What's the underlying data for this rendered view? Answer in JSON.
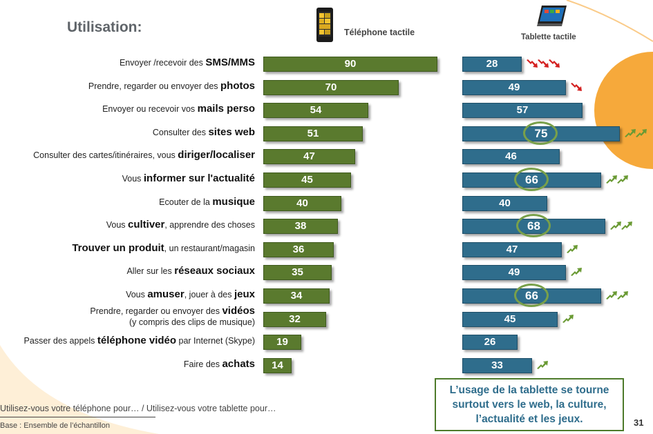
{
  "title": "Utilisation:",
  "devices": {
    "phone": "Téléphone tactile",
    "tablet": "Tablette tactile"
  },
  "colors": {
    "phone_bar": "#5a7a2e",
    "tablet_bar": "#2f6d8c",
    "highlight_circle": "#79a04a",
    "up_arrow": "#6a9a34",
    "down_arrow": "#d42020",
    "decor": "#f6a93b"
  },
  "chart_data": {
    "type": "bar",
    "orientation": "horizontal",
    "title": "Utilisation:",
    "categories": [
      "Envoyer /recevoir des SMS/MMS",
      "Prendre, regarder ou envoyer des photos",
      "Envoyer ou recevoir vos mails perso",
      "Consulter des sites web",
      "Consulter des cartes/itinéraires, vous diriger/localiser",
      "Vous informer sur l'actualité",
      "Ecouter de la musique",
      "Vous cultiver, apprendre des choses",
      "Trouver un produit, un restaurant/magasin",
      "Aller sur les réseaux sociaux",
      "Vous amuser, jouer à des jeux",
      "Prendre, regarder ou envoyer des vidéos (y compris des clips de musique)",
      "Passer des appels téléphone vidéo par Internet (Skype)",
      "Faire des achats"
    ],
    "series": [
      {
        "name": "Téléphone tactile",
        "values": [
          90,
          70,
          54,
          51,
          47,
          45,
          40,
          38,
          36,
          35,
          34,
          32,
          19,
          14
        ]
      },
      {
        "name": "Tablette tactile",
        "values": [
          28,
          49,
          57,
          75,
          46,
          66,
          40,
          68,
          47,
          49,
          66,
          45,
          26,
          33
        ]
      }
    ],
    "tablet_highlighted": [
      false,
      false,
      false,
      true,
      false,
      true,
      false,
      true,
      false,
      false,
      true,
      false,
      false,
      false
    ],
    "tablet_trend": [
      "down2",
      "down1",
      "",
      "up2",
      "",
      "up2",
      "",
      "up2",
      "up1",
      "up1",
      "up2",
      "up1",
      "",
      "up1"
    ],
    "xlim": [
      0,
      100
    ]
  },
  "rows": [
    {
      "pre": "Envoyer /recevoir des ",
      "bold": "SMS/MMS",
      "post": ""
    },
    {
      "pre": "Prendre, regarder ou envoyer des ",
      "bold": "photos",
      "post": ""
    },
    {
      "pre": "Envoyer ou recevoir vos ",
      "bold": "mails perso",
      "post": ""
    },
    {
      "pre": "Consulter des ",
      "bold": "sites web",
      "post": ""
    },
    {
      "pre": "Consulter des cartes/itinéraires, vous ",
      "bold": "diriger/localiser",
      "post": ""
    },
    {
      "pre": "Vous ",
      "bold": "informer sur l'actualité",
      "post": ""
    },
    {
      "pre": "Ecouter de la ",
      "bold": "musique",
      "post": ""
    },
    {
      "pre": "Vous ",
      "bold": "cultiver",
      "post": ", apprendre des choses"
    },
    {
      "pre": "",
      "bold": "Trouver un produit",
      "post": ", un restaurant/magasin"
    },
    {
      "pre": "Aller sur les ",
      "bold": "réseaux sociaux",
      "post": ""
    },
    {
      "pre": "Vous ",
      "bold": "amuser",
      "post": ", jouer à des ",
      "bold2": "jeux"
    },
    {
      "pre": "Prendre, regarder ou envoyer des ",
      "bold": "vidéos",
      "post": "",
      "line2": "(y compris des clips de musique)"
    },
    {
      "pre": "Passer des appels ",
      "bold": "téléphone vidéo",
      "post": " par Internet (Skype)"
    },
    {
      "pre": "Faire des ",
      "bold": "achats",
      "post": ""
    }
  ],
  "callout": {
    "line1": "L’usage de la tablette se tourne",
    "line2": "surtout vers le web, la culture,",
    "line3": "l’actualité et les jeux."
  },
  "footer": {
    "question": "Utilisez-vous votre téléphone pour… / Utilisez-vous votre tablette pour…",
    "base": "Base : Ensemble de l’échantillon",
    "page": "31"
  }
}
